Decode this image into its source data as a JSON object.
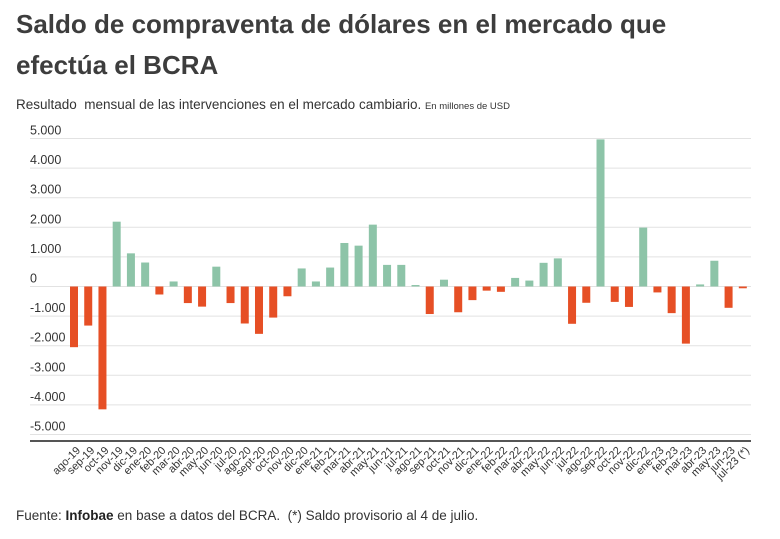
{
  "header": {
    "title": "Saldo de compraventa de dólares en el mercado que efectúa el BCRA",
    "subtitle": "Resultado  mensual de las intervenciones en el mercado cambiario. ",
    "unit_note": "En millones de USD"
  },
  "footer": {
    "source_label": "Fuente: ",
    "source_name": "Infobae",
    "source_rest": " en base a datos del BCRA.  ",
    "note": "(*) Saldo provisorio al 4 de julio."
  },
  "colors": {
    "positive": "#8dc4a8",
    "negative": "#e64f25",
    "gridline": "#e2e2e2",
    "axis": "#555555"
  },
  "chart_data": {
    "type": "bar",
    "title": "Saldo de compraventa de dólares en el mercado que efectúa el BCRA",
    "subtitle": "Resultado mensual de las intervenciones en el mercado cambiario.",
    "xlabel": "",
    "ylabel": "",
    "unit": "En millones de USD",
    "ylim": [
      -5200,
      5000
    ],
    "grid": true,
    "legend": "none",
    "yticks": [
      5000,
      4000,
      3000,
      2000,
      1000,
      0,
      -1000,
      -2000,
      -3000,
      -4000,
      -5000
    ],
    "ytick_labels": [
      "5.000",
      "4.000",
      "3.000",
      "2.000",
      "1.000",
      "0",
      "-1.000",
      "-2.000",
      "-3.000",
      "-4.000",
      "-5.000"
    ],
    "categories": [
      "ago-19",
      "sep-19",
      "oct-19",
      "nov-19",
      "dic-19",
      "ene-20",
      "feb-20",
      "mar-20",
      "abr-20",
      "may-20",
      "jun-20",
      "jul-20",
      "ago-20",
      "sept-20",
      "oct-20",
      "nov-20",
      "dic-20",
      "ene-21",
      "feb-21",
      "mar-21",
      "abr-21",
      "may-21",
      "jun-21",
      "jul-21",
      "ago-21",
      "sep-21",
      "oct-21",
      "nov-21",
      "dic-21",
      "ene-22",
      "feb-22",
      "mar-22",
      "abr-22",
      "may-22",
      "jun-22",
      "jul-22",
      "ago-22",
      "sep-22",
      "oct-22",
      "nov-22",
      "dic-22",
      "ene-23",
      "feb-23",
      "mar-23",
      "abr-23",
      "may-23",
      "jun-23",
      "jul-23 (*)"
    ],
    "values": [
      -2050,
      -1320,
      -4150,
      2190,
      1120,
      810,
      -270,
      170,
      -560,
      -680,
      670,
      -560,
      -1250,
      -1600,
      -1050,
      -330,
      610,
      170,
      640,
      1470,
      1380,
      2090,
      730,
      730,
      50,
      -930,
      230,
      -870,
      -460,
      -140,
      -180,
      290,
      200,
      800,
      950,
      -1260,
      -550,
      4970,
      -520,
      -690,
      1990,
      -200,
      -900,
      -1930,
      70,
      870,
      -720,
      -60
    ]
  }
}
